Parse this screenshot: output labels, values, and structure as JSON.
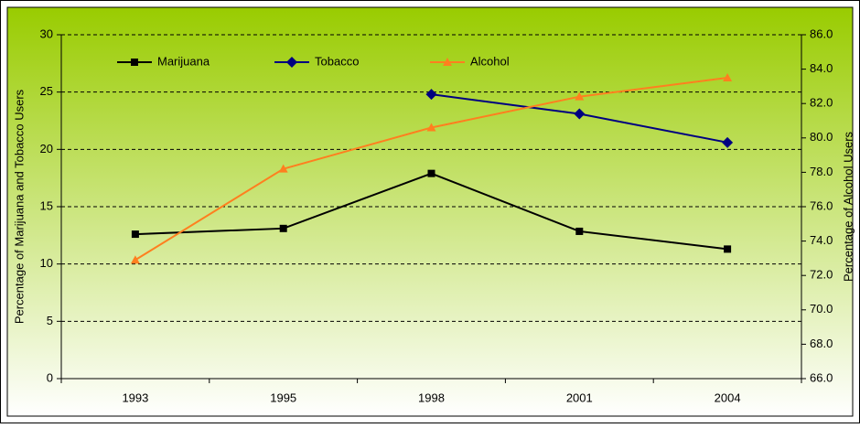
{
  "chart_data": {
    "type": "line",
    "categories": [
      "1993",
      "1995",
      "1998",
      "2001",
      "2004"
    ],
    "series": [
      {
        "name": "Marijuana",
        "color": "#000000",
        "marker": "square",
        "values": [
          12.6,
          13.1,
          17.9,
          12.85,
          11.3
        ]
      },
      {
        "name": "Tobacco",
        "color": "#000080",
        "marker": "diamond",
        "values": [
          null,
          null,
          24.8,
          23.1,
          20.6
        ]
      },
      {
        "name": "Alcohol",
        "color": "#ff7f1f",
        "marker": "triangle",
        "axis": "y2",
        "values": [
          72.9,
          78.2,
          80.6,
          82.4,
          83.5
        ]
      }
    ],
    "ylabel": "Percentage of Marijuana and Tobacco Users",
    "y2label": "Percentage of Alcohol Users",
    "ylim": [
      0,
      30
    ],
    "yticks": [
      0,
      5,
      10,
      15,
      20,
      25,
      30
    ],
    "y2lim": [
      66,
      86
    ],
    "y2ticks": [
      {
        "value": 66,
        "label": "66.0"
      },
      {
        "value": 68,
        "label": "68.0"
      },
      {
        "value": 70,
        "label": "70.0"
      },
      {
        "value": 72,
        "label": "72.0"
      },
      {
        "value": 74,
        "label": "74.0"
      },
      {
        "value": 76,
        "label": "76.0"
      },
      {
        "value": 78,
        "label": "78.0"
      },
      {
        "value": 80,
        "label": "80.0"
      },
      {
        "value": 82,
        "label": "82.0"
      },
      {
        "value": 84,
        "label": "84.0"
      },
      {
        "value": 86,
        "label": "86.0"
      }
    ],
    "grid": true,
    "legend": "top-left"
  }
}
